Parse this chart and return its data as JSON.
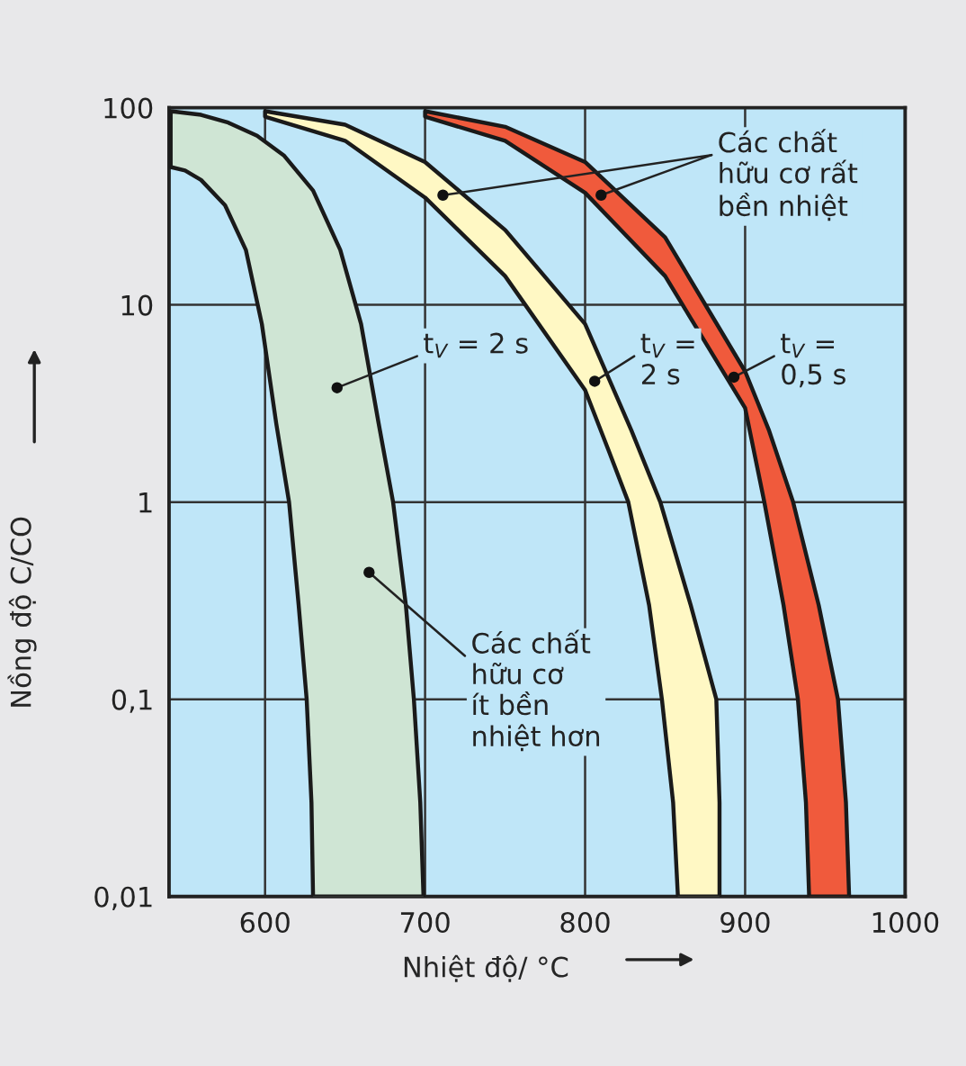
{
  "chart_data": {
    "type": "area",
    "xlabel": "Nhiệt độ/ °C",
    "ylabel": "Nồng độ C/CO",
    "log": "y",
    "grid": true,
    "xlim": [
      540,
      1000
    ],
    "xticks": [
      600,
      700,
      800,
      900,
      1000
    ],
    "ylim": [
      0.01,
      100
    ],
    "yticks": [
      {
        "value": 0.01,
        "label": "0,01"
      },
      {
        "value": 0.1,
        "label": "0,1"
      },
      1,
      10,
      100
    ],
    "series": [
      {
        "color": "#cfe5d4",
        "x": [
          541,
          560,
          577,
          595,
          612,
          630,
          647,
          660,
          671,
          680,
          688,
          693,
          697,
          699,
          630,
          629,
          626,
          621,
          615,
          607,
          598,
          588,
          575,
          560,
          550,
          541
        ],
        "values": [
          96,
          92,
          84,
          72,
          57,
          38,
          19,
          8,
          2.5,
          1,
          0.3,
          0.1,
          0.03,
          0.01,
          0.01,
          0.03,
          0.1,
          0.3,
          1,
          2.5,
          8,
          19,
          32,
          43,
          48,
          50
        ]
      },
      {
        "color": "#fff8c4",
        "x": [
          600,
          650,
          700,
          750,
          800,
          829,
          847,
          866,
          882,
          884,
          884,
          858,
          855,
          848,
          840,
          827,
          815,
          800,
          750,
          700,
          650,
          600
        ],
        "values": [
          96,
          82,
          53,
          24,
          8,
          2.3,
          1,
          0.3,
          0.1,
          0.03,
          0.01,
          0.01,
          0.03,
          0.1,
          0.3,
          1,
          1.8,
          3.7,
          14,
          35,
          68,
          90
        ]
      },
      {
        "color": "#f05a3c",
        "x": [
          700,
          750,
          800,
          850,
          900,
          915,
          930,
          946,
          958,
          963,
          965,
          940,
          938,
          933,
          924,
          912,
          900,
          850,
          800,
          750,
          700
        ],
        "values": [
          96,
          80,
          53,
          22,
          4.6,
          2.3,
          1,
          0.3,
          0.1,
          0.03,
          0.01,
          0.01,
          0.03,
          0.1,
          0.3,
          1,
          3,
          14,
          37,
          68,
          90
        ]
      }
    ],
    "annotations": [
      {
        "text": "t$_{V}$ = 2 s",
        "x": 645,
        "y": 3.8
      },
      {
        "text": "t$_{V}$ =\n2 s",
        "x": 806,
        "y": 4.1
      },
      {
        "text": "t$_{V}$ =\n0,5 s",
        "x": 893,
        "y": 4.3
      },
      {
        "text": "Các chất\nhữu cơ rất\nbền nhiệt",
        "x": 810,
        "y": 36
      },
      {
        "text": "Các chất\nhữu cơ\nít bền\nnhiệt hơn",
        "x": 665,
        "y": 0.44
      }
    ]
  }
}
